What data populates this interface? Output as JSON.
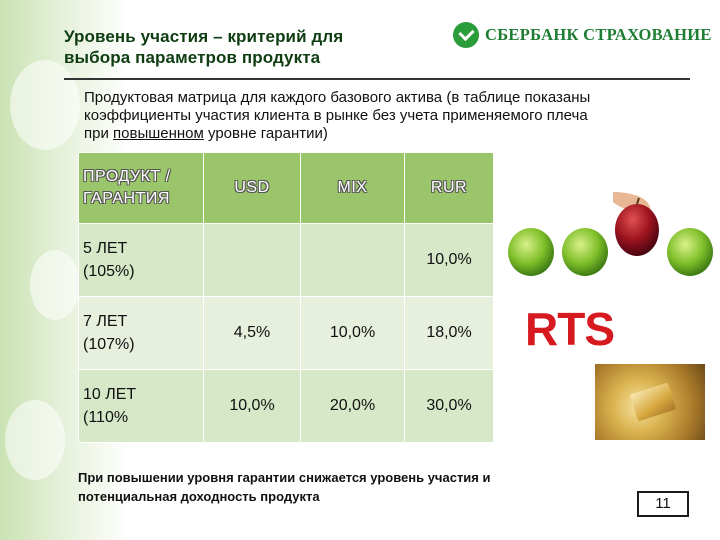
{
  "title": {
    "line1": "Уровень участия – критерий для",
    "line2": "выбора параметров продукта"
  },
  "logo": {
    "text": "СБЕРБАНК СТРАХОВАНИЕ",
    "brand_color": "#1e7d32"
  },
  "intro": {
    "before_underline": "Продуктовая матрица для каждого базового актива (в таблице показаны коэффициенты участия клиента в рынке без учета применяемого плеча при ",
    "underlined": "повышенном",
    "after_underline": " уровне гарантии)"
  },
  "table": {
    "header": {
      "product_line1": "ПРОДУКТ /",
      "product_line2": "ГАРАНТИЯ",
      "usd": "USD",
      "mix": "MIX",
      "rur": "RUR"
    },
    "rows": [
      {
        "term": "5 ЛЕТ",
        "guarantee": "(105%)",
        "usd": "",
        "mix": "",
        "rur": "10,0%"
      },
      {
        "term": "7 ЛЕТ",
        "guarantee": "(107%)",
        "usd": "4,5%",
        "mix": "10,0%",
        "rur": "18,0%"
      },
      {
        "term": "10 ЛЕТ",
        "guarantee": "(110%",
        "usd": "10,0%",
        "mix": "20,0%",
        "rur": "30,0%"
      }
    ],
    "header_color": "#9bc56a",
    "row_color": "#d6e8c7"
  },
  "rts_logo": {
    "text": "RTS",
    "color": "#d71920"
  },
  "footer": {
    "line1": "При повышении уровня гарантии снижается уровень участия и",
    "line2": "потенциальная доходность продукта"
  },
  "page_number": "11"
}
